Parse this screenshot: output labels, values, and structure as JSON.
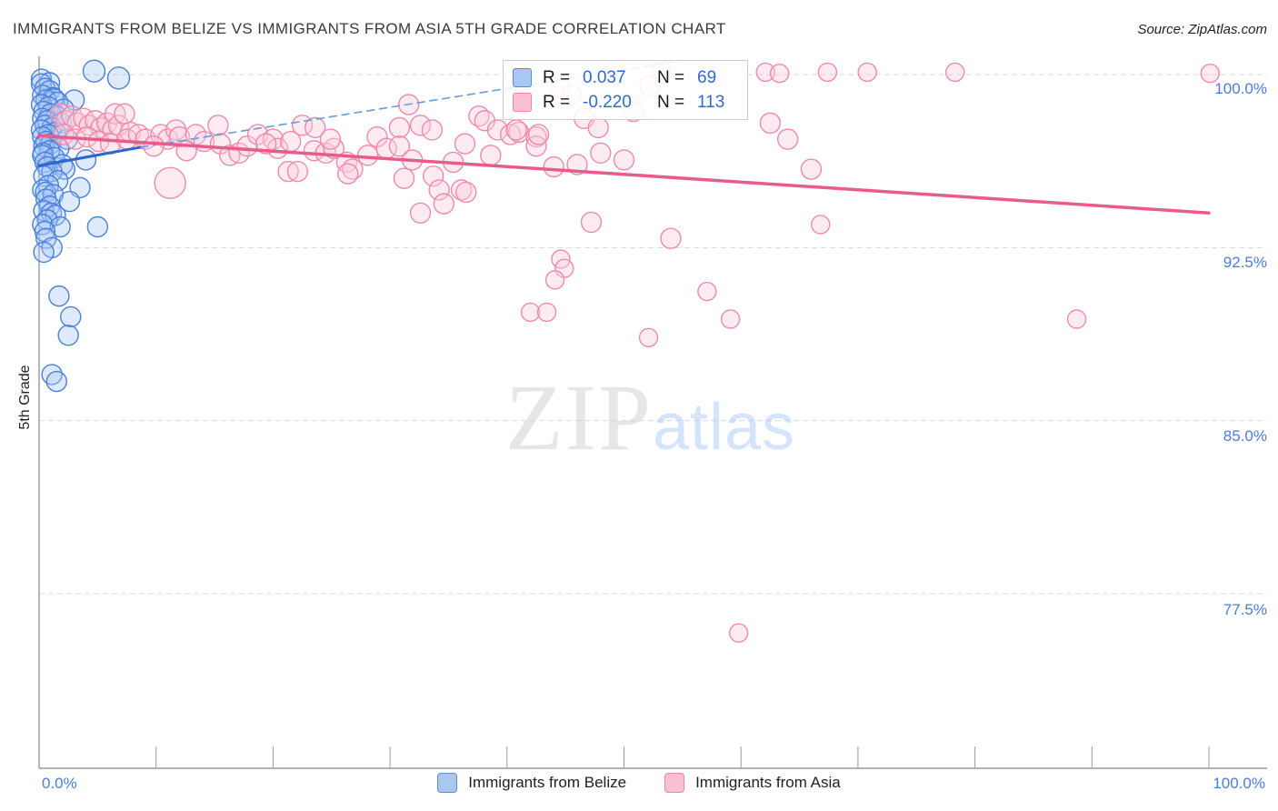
{
  "title": "IMMIGRANTS FROM BELIZE VS IMMIGRANTS FROM ASIA 5TH GRADE CORRELATION CHART",
  "source": "Source: ZipAtlas.com",
  "watermark": {
    "zip": "ZIP",
    "atlas": "atlas"
  },
  "y_axis": {
    "label": "5th Grade",
    "ticks": [
      "100.0%",
      "92.5%",
      "85.0%",
      "77.5%"
    ]
  },
  "x_axis": {
    "min_label": "0.0%",
    "max_label": "100.0%"
  },
  "stats_legend": {
    "rows": [
      {
        "series": "Immigrants from Belize",
        "r_label": "R =",
        "r_value": "0.037",
        "n_label": "N =",
        "n_value": "69"
      },
      {
        "series": "Immigrants from Asia",
        "r_label": "R =",
        "r_value": "-0.220",
        "n_label": "N =",
        "n_value": "113"
      }
    ]
  },
  "bottom_legend": [
    {
      "label": "Immigrants from Belize",
      "fill": "#a8c8f0",
      "border": "#5b8bd6"
    },
    {
      "label": "Immigrants from Asia",
      "fill": "#f9c0d4",
      "border": "#ef85a8"
    }
  ],
  "chart_data": {
    "type": "scatter",
    "title": "Immigrants from Belize vs Immigrants from Asia 5th Grade",
    "xlabel": "",
    "ylabel": "5th Grade",
    "xlim": [
      0,
      100
    ],
    "ylim": [
      72.5,
      101.5
    ],
    "grid": true,
    "gridlines_y": [
      100,
      92.5,
      85,
      77.5
    ],
    "x_tick_count": 11,
    "legend_position": "top-center",
    "series": [
      {
        "name": "Immigrants from Belize",
        "R": 0.037,
        "N": 69,
        "stroke": "#4a80d9",
        "fill": "rgba(164,199,248,0.35)",
        "points": [
          [
            4.7,
            100.15,
            12
          ],
          [
            6.8,
            99.85,
            12
          ],
          [
            0.2,
            99.8
          ],
          [
            0.9,
            99.65
          ],
          [
            0.2,
            99.6
          ],
          [
            0.5,
            99.4
          ],
          [
            0.9,
            99.3
          ],
          [
            0.3,
            99.1
          ],
          [
            1.2,
            99.0
          ],
          [
            1.3,
            98.95
          ],
          [
            0.6,
            98.9
          ],
          [
            3.0,
            98.9
          ],
          [
            1.6,
            98.8
          ],
          [
            0.2,
            98.7
          ],
          [
            0.8,
            98.6
          ],
          [
            2.1,
            98.5
          ],
          [
            0.4,
            98.4
          ],
          [
            1.0,
            98.3
          ],
          [
            1.5,
            98.2
          ],
          [
            0.3,
            98.1
          ],
          [
            0.7,
            98.0
          ],
          [
            1.9,
            97.9
          ],
          [
            0.5,
            97.8
          ],
          [
            1.1,
            97.7
          ],
          [
            0.2,
            97.6
          ],
          [
            1.4,
            97.5
          ],
          [
            0.8,
            97.4
          ],
          [
            0.3,
            97.3
          ],
          [
            2.4,
            97.2
          ],
          [
            0.6,
            97.1
          ],
          [
            1.0,
            97.0
          ],
          [
            0.4,
            96.9
          ],
          [
            1.7,
            96.8
          ],
          [
            0.9,
            96.7
          ],
          [
            0.35,
            96.6
          ],
          [
            0.3,
            96.5
          ],
          [
            1.3,
            96.4
          ],
          [
            4.0,
            96.3
          ],
          [
            0.5,
            96.2
          ],
          [
            2.0,
            96.1
          ],
          [
            0.7,
            96.0
          ],
          [
            2.2,
            95.9
          ],
          [
            1.1,
            95.8
          ],
          [
            0.4,
            95.6
          ],
          [
            1.6,
            95.4
          ],
          [
            0.8,
            95.2
          ],
          [
            3.5,
            95.1
          ],
          [
            0.3,
            95.0
          ],
          [
            0.55,
            94.9
          ],
          [
            1.2,
            94.8
          ],
          [
            0.6,
            94.6
          ],
          [
            2.6,
            94.5
          ],
          [
            0.9,
            94.3
          ],
          [
            0.4,
            94.1
          ],
          [
            1.05,
            94.0
          ],
          [
            1.4,
            93.9
          ],
          [
            0.7,
            93.7
          ],
          [
            0.3,
            93.5
          ],
          [
            1.8,
            93.4
          ],
          [
            5.0,
            93.4
          ],
          [
            0.5,
            93.2
          ],
          [
            0.6,
            92.9
          ],
          [
            1.1,
            92.5
          ],
          [
            0.4,
            92.3
          ],
          [
            1.7,
            90.4
          ],
          [
            2.7,
            89.5
          ],
          [
            2.5,
            88.7
          ],
          [
            1.1,
            87.0
          ],
          [
            1.5,
            86.7
          ]
        ]
      },
      {
        "name": "Immigrants from Asia",
        "R": -0.22,
        "N": 113,
        "stroke": "#ee8aac",
        "fill": "rgba(250,205,220,0.4)",
        "points": [
          [
            1.8,
            98.3
          ],
          [
            2.3,
            98.0
          ],
          [
            2.8,
            98.2
          ],
          [
            3.3,
            97.9
          ],
          [
            3.8,
            98.1
          ],
          [
            4.3,
            97.8
          ],
          [
            4.8,
            98.0
          ],
          [
            5.3,
            97.7
          ],
          [
            5.8,
            97.9
          ],
          [
            6.3,
            97.6
          ],
          [
            6.5,
            98.3
          ],
          [
            6.8,
            97.8
          ],
          [
            7.3,
            98.3
          ],
          [
            7.8,
            97.5
          ],
          [
            2.1,
            97.4
          ],
          [
            3.1,
            97.2
          ],
          [
            4.1,
            97.3
          ],
          [
            5.1,
            97.1
          ],
          [
            6.1,
            97.0
          ],
          [
            7.5,
            97.2
          ],
          [
            8.5,
            97.4
          ],
          [
            9.1,
            97.2
          ],
          [
            10.4,
            97.4
          ],
          [
            11.0,
            97.2
          ],
          [
            11.7,
            97.6
          ],
          [
            12.0,
            97.3
          ],
          [
            13.4,
            97.4
          ],
          [
            14.1,
            97.1
          ],
          [
            15.3,
            97.8
          ],
          [
            15.5,
            97.0
          ],
          [
            16.3,
            96.5
          ],
          [
            17.1,
            96.6
          ],
          [
            17.8,
            96.9
          ],
          [
            18.7,
            97.4
          ],
          [
            11.2,
            95.3,
            17
          ],
          [
            20.0,
            97.2
          ],
          [
            20.4,
            96.8
          ],
          [
            21.5,
            97.1
          ],
          [
            22.5,
            97.8
          ],
          [
            23.6,
            97.7
          ],
          [
            23.5,
            96.7
          ],
          [
            24.5,
            96.6
          ],
          [
            25.2,
            96.8
          ],
          [
            26.3,
            96.2
          ],
          [
            26.8,
            95.9
          ],
          [
            21.3,
            95.8
          ],
          [
            22.1,
            95.8
          ],
          [
            26.4,
            95.7
          ],
          [
            28.1,
            96.5
          ],
          [
            28.9,
            97.3
          ],
          [
            29.7,
            96.8
          ],
          [
            31.6,
            98.7
          ],
          [
            30.8,
            97.7
          ],
          [
            32.6,
            97.8
          ],
          [
            33.6,
            97.6
          ],
          [
            36.4,
            97.0
          ],
          [
            37.6,
            98.2
          ],
          [
            38.1,
            98.0
          ],
          [
            39.2,
            97.6
          ],
          [
            40.3,
            97.4
          ],
          [
            41.0,
            97.5
          ],
          [
            42.5,
            97.3
          ],
          [
            42.5,
            96.9
          ],
          [
            46.0,
            96.1
          ],
          [
            46.6,
            98.1
          ],
          [
            47.8,
            97.7
          ],
          [
            35.4,
            96.2
          ],
          [
            30.8,
            96.9
          ],
          [
            31.2,
            95.5
          ],
          [
            33.7,
            95.6
          ],
          [
            34.2,
            95.0
          ],
          [
            36.1,
            95.0
          ],
          [
            36.5,
            94.9
          ],
          [
            34.6,
            94.4
          ],
          [
            32.6,
            94.0
          ],
          [
            47.2,
            93.6
          ],
          [
            54.0,
            92.9
          ],
          [
            53.2,
            100.2,
            10
          ],
          [
            62.1,
            100.1,
            10
          ],
          [
            63.3,
            100.05,
            10
          ],
          [
            67.4,
            100.1,
            10
          ],
          [
            70.8,
            100.1,
            10
          ],
          [
            78.3,
            100.1,
            10
          ],
          [
            100.1,
            100.05,
            10
          ],
          [
            44.6,
            99.4
          ],
          [
            45.5,
            99.1
          ],
          [
            52.2,
            99.5
          ],
          [
            50.8,
            98.4
          ],
          [
            40.8,
            97.6
          ],
          [
            42.7,
            97.4
          ],
          [
            66.8,
            93.5,
            10
          ],
          [
            88.7,
            89.4,
            10
          ],
          [
            57.1,
            90.6,
            10
          ],
          [
            59.1,
            89.4,
            10
          ],
          [
            52.1,
            88.6,
            10
          ],
          [
            44.6,
            92.0,
            10
          ],
          [
            44.9,
            91.6,
            10
          ],
          [
            44.1,
            91.1,
            10
          ],
          [
            42.0,
            89.7,
            10
          ],
          [
            43.4,
            89.7,
            10
          ],
          [
            59.8,
            75.8,
            10
          ],
          [
            62.5,
            97.9
          ],
          [
            64.0,
            97.2
          ],
          [
            66.0,
            95.9
          ],
          [
            48.0,
            96.6
          ],
          [
            50.0,
            96.3
          ],
          [
            9.8,
            96.9
          ],
          [
            12.6,
            96.7
          ],
          [
            19.4,
            97.0
          ],
          [
            24.9,
            97.2
          ],
          [
            31.9,
            96.3
          ],
          [
            38.6,
            96.5
          ],
          [
            44.0,
            96.0
          ]
        ]
      }
    ],
    "trendlines": [
      {
        "series": "Immigrants from Belize",
        "style": "solid",
        "color": "#2d66cc",
        "width": 3,
        "x1": 0,
        "y1": 96.05,
        "x2": 8.7,
        "y2": 96.85
      },
      {
        "series": "Immigrants from Belize",
        "style": "dashed",
        "color": "#6b99e0",
        "width": 1.6,
        "x1": 8.7,
        "y1": 96.85,
        "x2": 54.2,
        "y2": 100.55
      },
      {
        "series": "Immigrants from Asia",
        "style": "solid",
        "color": "#e75c8d",
        "width": 3.5,
        "x1": 0,
        "y1": 97.35,
        "x2": 100,
        "y2": 94.0
      }
    ]
  }
}
